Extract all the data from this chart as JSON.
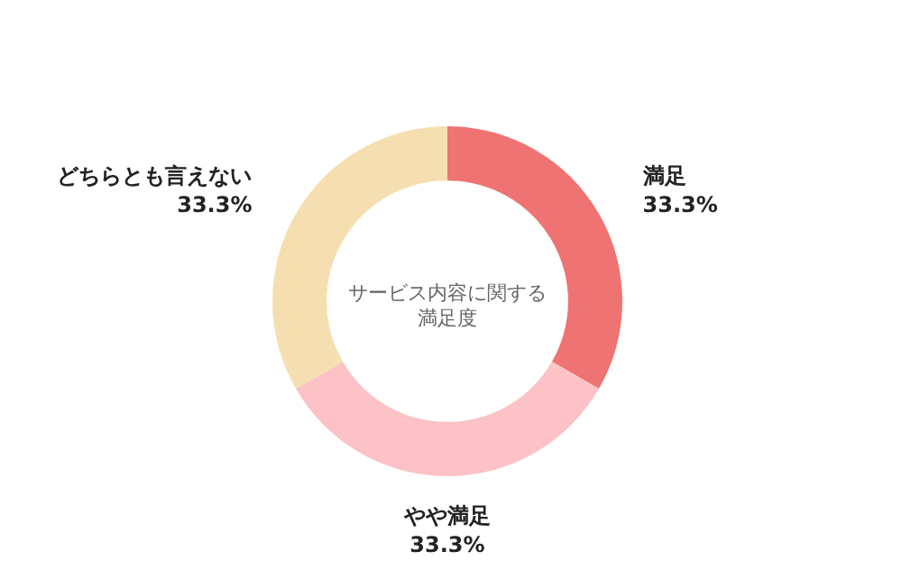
{
  "chart_data": {
    "type": "donut",
    "title": "サービス内容に関する満足度",
    "categories": [
      "満足",
      "やや満足",
      "どちらとも言えない"
    ],
    "values": [
      33.3,
      33.3,
      33.3
    ],
    "colors": [
      "#ee7372",
      "#fcc2c6",
      "#f5dfb0"
    ],
    "value_labels": [
      "33.3%",
      "33.3%",
      "33.3%"
    ]
  }
}
